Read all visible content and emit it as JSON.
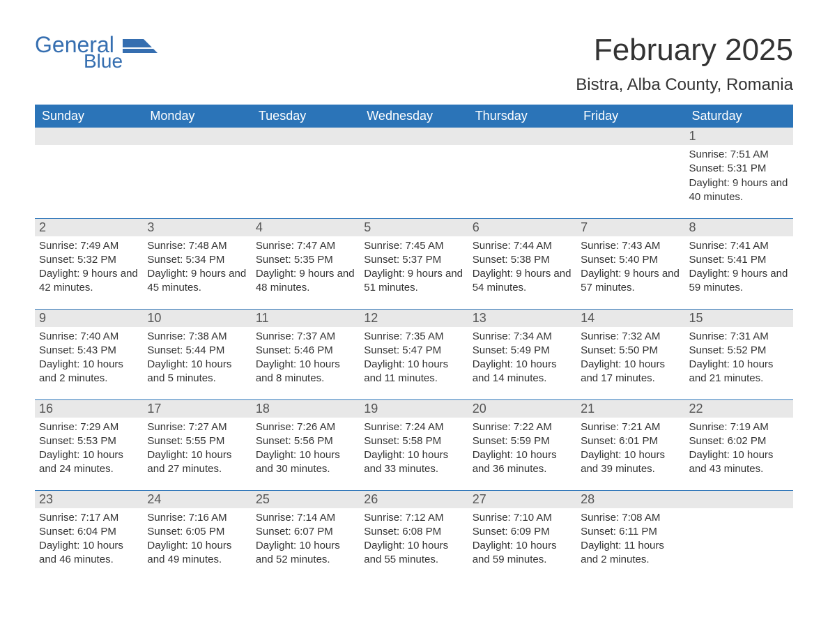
{
  "logo": {
    "text_general": "General",
    "text_blue": "Blue",
    "brand_color": "#356eb0"
  },
  "title": {
    "month": "February 2025",
    "location": "Bistra, Alba County, Romania"
  },
  "calendar": {
    "header_bg": "#2b74b8",
    "header_fg": "#ffffff",
    "daynum_bg": "#e8e8e8",
    "daynum_fg": "#555555",
    "border_color": "#2b74b8",
    "text_color": "#333333",
    "background": "#ffffff",
    "day_headers": [
      "Sunday",
      "Monday",
      "Tuesday",
      "Wednesday",
      "Thursday",
      "Friday",
      "Saturday"
    ],
    "weeks": [
      [
        null,
        null,
        null,
        null,
        null,
        null,
        {
          "n": "1",
          "sunrise": "Sunrise: 7:51 AM",
          "sunset": "Sunset: 5:31 PM",
          "daylight": "Daylight: 9 hours and 40 minutes."
        }
      ],
      [
        {
          "n": "2",
          "sunrise": "Sunrise: 7:49 AM",
          "sunset": "Sunset: 5:32 PM",
          "daylight": "Daylight: 9 hours and 42 minutes."
        },
        {
          "n": "3",
          "sunrise": "Sunrise: 7:48 AM",
          "sunset": "Sunset: 5:34 PM",
          "daylight": "Daylight: 9 hours and 45 minutes."
        },
        {
          "n": "4",
          "sunrise": "Sunrise: 7:47 AM",
          "sunset": "Sunset: 5:35 PM",
          "daylight": "Daylight: 9 hours and 48 minutes."
        },
        {
          "n": "5",
          "sunrise": "Sunrise: 7:45 AM",
          "sunset": "Sunset: 5:37 PM",
          "daylight": "Daylight: 9 hours and 51 minutes."
        },
        {
          "n": "6",
          "sunrise": "Sunrise: 7:44 AM",
          "sunset": "Sunset: 5:38 PM",
          "daylight": "Daylight: 9 hours and 54 minutes."
        },
        {
          "n": "7",
          "sunrise": "Sunrise: 7:43 AM",
          "sunset": "Sunset: 5:40 PM",
          "daylight": "Daylight: 9 hours and 57 minutes."
        },
        {
          "n": "8",
          "sunrise": "Sunrise: 7:41 AM",
          "sunset": "Sunset: 5:41 PM",
          "daylight": "Daylight: 9 hours and 59 minutes."
        }
      ],
      [
        {
          "n": "9",
          "sunrise": "Sunrise: 7:40 AM",
          "sunset": "Sunset: 5:43 PM",
          "daylight": "Daylight: 10 hours and 2 minutes."
        },
        {
          "n": "10",
          "sunrise": "Sunrise: 7:38 AM",
          "sunset": "Sunset: 5:44 PM",
          "daylight": "Daylight: 10 hours and 5 minutes."
        },
        {
          "n": "11",
          "sunrise": "Sunrise: 7:37 AM",
          "sunset": "Sunset: 5:46 PM",
          "daylight": "Daylight: 10 hours and 8 minutes."
        },
        {
          "n": "12",
          "sunrise": "Sunrise: 7:35 AM",
          "sunset": "Sunset: 5:47 PM",
          "daylight": "Daylight: 10 hours and 11 minutes."
        },
        {
          "n": "13",
          "sunrise": "Sunrise: 7:34 AM",
          "sunset": "Sunset: 5:49 PM",
          "daylight": "Daylight: 10 hours and 14 minutes."
        },
        {
          "n": "14",
          "sunrise": "Sunrise: 7:32 AM",
          "sunset": "Sunset: 5:50 PM",
          "daylight": "Daylight: 10 hours and 17 minutes."
        },
        {
          "n": "15",
          "sunrise": "Sunrise: 7:31 AM",
          "sunset": "Sunset: 5:52 PM",
          "daylight": "Daylight: 10 hours and 21 minutes."
        }
      ],
      [
        {
          "n": "16",
          "sunrise": "Sunrise: 7:29 AM",
          "sunset": "Sunset: 5:53 PM",
          "daylight": "Daylight: 10 hours and 24 minutes."
        },
        {
          "n": "17",
          "sunrise": "Sunrise: 7:27 AM",
          "sunset": "Sunset: 5:55 PM",
          "daylight": "Daylight: 10 hours and 27 minutes."
        },
        {
          "n": "18",
          "sunrise": "Sunrise: 7:26 AM",
          "sunset": "Sunset: 5:56 PM",
          "daylight": "Daylight: 10 hours and 30 minutes."
        },
        {
          "n": "19",
          "sunrise": "Sunrise: 7:24 AM",
          "sunset": "Sunset: 5:58 PM",
          "daylight": "Daylight: 10 hours and 33 minutes."
        },
        {
          "n": "20",
          "sunrise": "Sunrise: 7:22 AM",
          "sunset": "Sunset: 5:59 PM",
          "daylight": "Daylight: 10 hours and 36 minutes."
        },
        {
          "n": "21",
          "sunrise": "Sunrise: 7:21 AM",
          "sunset": "Sunset: 6:01 PM",
          "daylight": "Daylight: 10 hours and 39 minutes."
        },
        {
          "n": "22",
          "sunrise": "Sunrise: 7:19 AM",
          "sunset": "Sunset: 6:02 PM",
          "daylight": "Daylight: 10 hours and 43 minutes."
        }
      ],
      [
        {
          "n": "23",
          "sunrise": "Sunrise: 7:17 AM",
          "sunset": "Sunset: 6:04 PM",
          "daylight": "Daylight: 10 hours and 46 minutes."
        },
        {
          "n": "24",
          "sunrise": "Sunrise: 7:16 AM",
          "sunset": "Sunset: 6:05 PM",
          "daylight": "Daylight: 10 hours and 49 minutes."
        },
        {
          "n": "25",
          "sunrise": "Sunrise: 7:14 AM",
          "sunset": "Sunset: 6:07 PM",
          "daylight": "Daylight: 10 hours and 52 minutes."
        },
        {
          "n": "26",
          "sunrise": "Sunrise: 7:12 AM",
          "sunset": "Sunset: 6:08 PM",
          "daylight": "Daylight: 10 hours and 55 minutes."
        },
        {
          "n": "27",
          "sunrise": "Sunrise: 7:10 AM",
          "sunset": "Sunset: 6:09 PM",
          "daylight": "Daylight: 10 hours and 59 minutes."
        },
        {
          "n": "28",
          "sunrise": "Sunrise: 7:08 AM",
          "sunset": "Sunset: 6:11 PM",
          "daylight": "Daylight: 11 hours and 2 minutes."
        },
        null
      ]
    ]
  }
}
